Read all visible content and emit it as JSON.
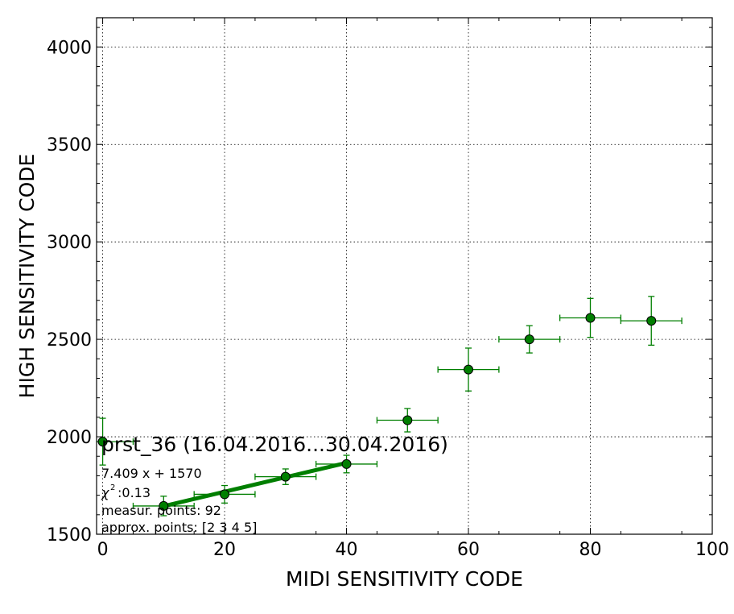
{
  "chart_data": {
    "type": "scatter",
    "title": "prst_36 (16.04.2016...30.04.2016)",
    "xlabel": "MIDI SENSITIVITY CODE",
    "ylabel": "HIGH SENSITIVITY CODE",
    "xlim": [
      -1,
      100
    ],
    "ylim": [
      1500,
      4150
    ],
    "xticks": [
      0,
      20,
      40,
      60,
      80,
      100
    ],
    "yticks": [
      1500,
      2000,
      2500,
      3000,
      3500,
      4000
    ],
    "xtick_labels": [
      "0",
      "20",
      "40",
      "60",
      "80",
      "100"
    ],
    "ytick_labels": [
      "1500",
      "2000",
      "2500",
      "3000",
      "3500",
      "4000"
    ],
    "grid": true,
    "color": "#007f00",
    "series": [
      {
        "points": [
          {
            "x": 0,
            "y": 1975,
            "xerr": 5,
            "yerr": 120
          },
          {
            "x": 10,
            "y": 1645,
            "xerr": 5,
            "yerr": 50
          },
          {
            "x": 20,
            "y": 1705,
            "xerr": 5,
            "yerr": 45
          },
          {
            "x": 30,
            "y": 1795,
            "xerr": 5,
            "yerr": 40
          },
          {
            "x": 40,
            "y": 1860,
            "xerr": 5,
            "yerr": 45
          },
          {
            "x": 50,
            "y": 2085,
            "xerr": 5,
            "yerr": 60
          },
          {
            "x": 60,
            "y": 2345,
            "xerr": 5,
            "yerr": 110
          },
          {
            "x": 70,
            "y": 2500,
            "xerr": 5,
            "yerr": 70
          },
          {
            "x": 80,
            "y": 2610,
            "xerr": 5,
            "yerr": 100
          },
          {
            "x": 90,
            "y": 2595,
            "xerr": 5,
            "yerr": 125
          }
        ]
      }
    ],
    "fit": {
      "slope": 7.409,
      "intercept": 1570,
      "x_range": [
        10,
        40
      ]
    },
    "annotations": {
      "equation": "7.409 x + 1570",
      "chi2": ":0.13",
      "measur_points": "measur. points: 92",
      "approx_points": "approx. points: [2 3 4 5]"
    }
  }
}
